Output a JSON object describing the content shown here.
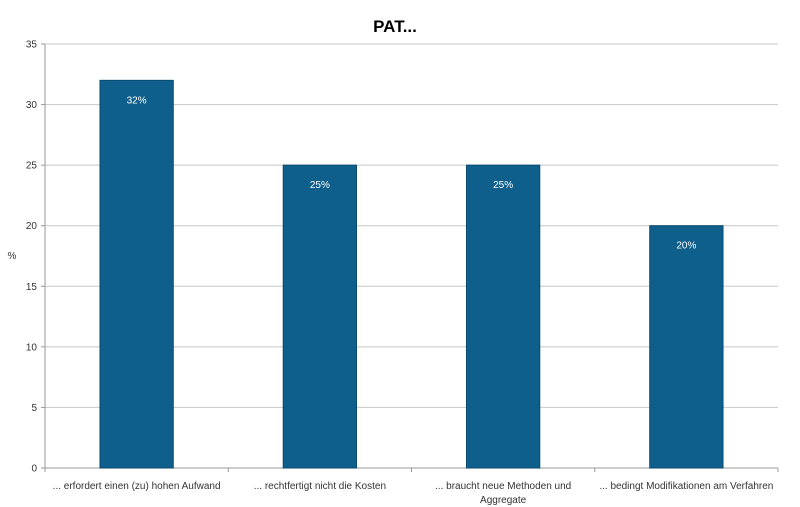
{
  "chart_data": {
    "type": "bar",
    "title": "PAT...",
    "xlabel": "",
    "ylabel": "%",
    "ylim": [
      0,
      35
    ],
    "yticks": [
      0,
      5,
      10,
      15,
      20,
      25,
      30,
      35
    ],
    "grid": true,
    "categories": [
      [
        "... erfordert einen (zu) hohen Aufwand"
      ],
      [
        "... rechtfertigt nicht die Kosten"
      ],
      [
        "... braucht neue Methoden und",
        "Aggregate"
      ],
      [
        "... bedingt Modifikationen am Verfahren"
      ]
    ],
    "values": [
      32,
      25,
      25,
      20
    ],
    "data_labels": [
      "32%",
      "25%",
      "25%",
      "20%"
    ],
    "colors": {
      "bar": "#0e5f8c",
      "bar_edge": "#0a4a6e",
      "grid": "#c8c8c8",
      "axis": "#999999"
    }
  }
}
